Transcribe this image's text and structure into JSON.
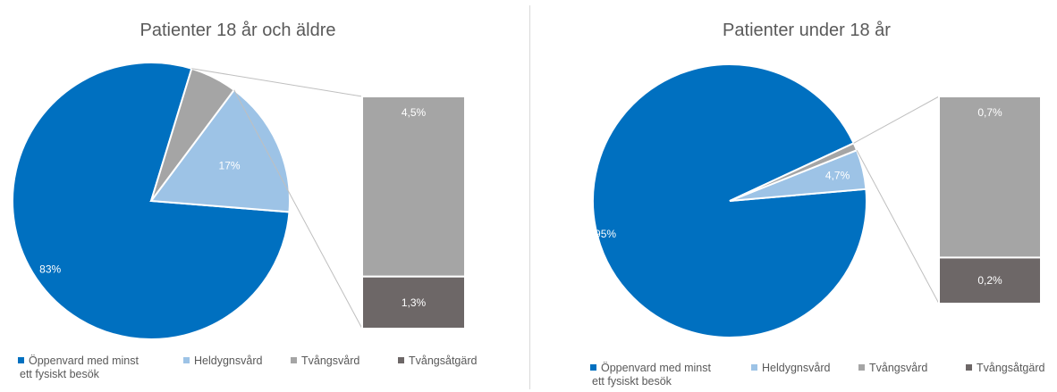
{
  "chart_data": [
    {
      "type": "pie",
      "title": "Patienter 18 år och äldre",
      "categories": [
        "Öppenvard med minst ett fysiskt besök",
        "Heldygnsvård",
        "Tvångsvård",
        "Tvångsåtgärd"
      ],
      "values": [
        83,
        17,
        4.5,
        1.3
      ],
      "pie_slices": [
        {
          "name": "Öppenvard med minst ett fysiskt besök",
          "value": 83,
          "label": "83%"
        },
        {
          "name": "Heldygnsvård",
          "value": 17,
          "label": "17%"
        },
        {
          "name": "Tvångsvård + Tvångsåtgärd",
          "value": 5.8,
          "label": ""
        }
      ],
      "breakout_bar": [
        {
          "name": "Tvångsvård",
          "value": 4.5,
          "label": "4,5%"
        },
        {
          "name": "Tvångsåtgärd",
          "value": 1.3,
          "label": "1,3%"
        }
      ],
      "legend": {
        "placement": "bottom",
        "items": [
          {
            "label_line1": "Öppenvard med minst",
            "label_line2": "ett fysiskt besök",
            "color": "#0070C0"
          },
          {
            "label_line1": "Heldygnsvård",
            "label_line2": "",
            "color": "#9DC3E6"
          },
          {
            "label_line1": "Tvångsvård",
            "label_line2": "",
            "color": "#A5A5A5"
          },
          {
            "label_line1": "Tvångsåtgärd",
            "label_line2": "",
            "color": "#6D6767"
          }
        ]
      }
    },
    {
      "type": "pie",
      "title": "Patienter under 18 år",
      "categories": [
        "Öppenvard med minst ett fysiskt besök",
        "Heldygnsvård",
        "Tvångsvård",
        "Tvångsåtgärd"
      ],
      "values": [
        95,
        4.7,
        0.7,
        0.2
      ],
      "pie_slices": [
        {
          "name": "Öppenvard med minst ett fysiskt besök",
          "value": 95,
          "label": "95%"
        },
        {
          "name": "Heldygnsvård",
          "value": 4.7,
          "label": "4,7%"
        },
        {
          "name": "Tvångsvård + Tvångsåtgärd",
          "value": 0.9,
          "label": ""
        }
      ],
      "breakout_bar": [
        {
          "name": "Tvångsvård",
          "value": 0.7,
          "label": "0,7%"
        },
        {
          "name": "Tvångsåtgärd",
          "value": 0.2,
          "label": "0,2%"
        }
      ],
      "legend": {
        "placement": "bottom",
        "items": [
          {
            "label_line1": "Öppenvard med minst",
            "label_line2": "ett fysiskt besök",
            "color": "#0070C0"
          },
          {
            "label_line1": "Heldygnsvård",
            "label_line2": "",
            "color": "#9DC3E6"
          },
          {
            "label_line1": "Tvångsvård",
            "label_line2": "",
            "color": "#A5A5A5"
          },
          {
            "label_line1": "Tvångsåtgärd",
            "label_line2": "",
            "color": "#6D6767"
          }
        ]
      }
    }
  ]
}
